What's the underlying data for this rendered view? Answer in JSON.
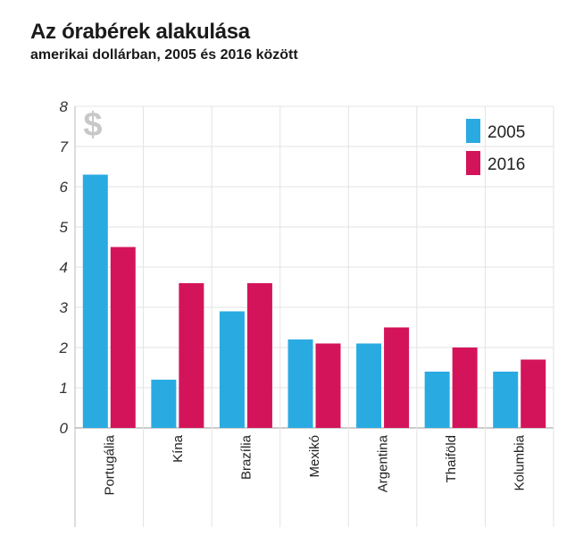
{
  "chart_data": {
    "type": "bar",
    "title": "Az órabérek alakulása",
    "subtitle": "amerikai dollárban, 2005 és 2016 között",
    "categories": [
      "Portugália",
      "Kína",
      "Brazília",
      "Mexikó",
      "Argentina",
      "Thaiföld",
      "Kolumbia"
    ],
    "series": [
      {
        "name": "2005",
        "color": "#29abe2",
        "values": [
          6.3,
          1.2,
          2.9,
          2.2,
          2.1,
          1.4,
          1.4
        ]
      },
      {
        "name": "2016",
        "color": "#d4145a",
        "values": [
          4.5,
          3.6,
          3.6,
          2.1,
          2.5,
          2.0,
          1.7
        ]
      }
    ],
    "ylim": [
      0,
      8
    ],
    "yticks": [
      "0",
      "1",
      "2",
      "3",
      "4",
      "5",
      "6",
      "7",
      "8"
    ],
    "grid": true,
    "legend_position": "top-right",
    "currency_icon": "dollar-sign-icon",
    "currency_symbol": "$"
  }
}
